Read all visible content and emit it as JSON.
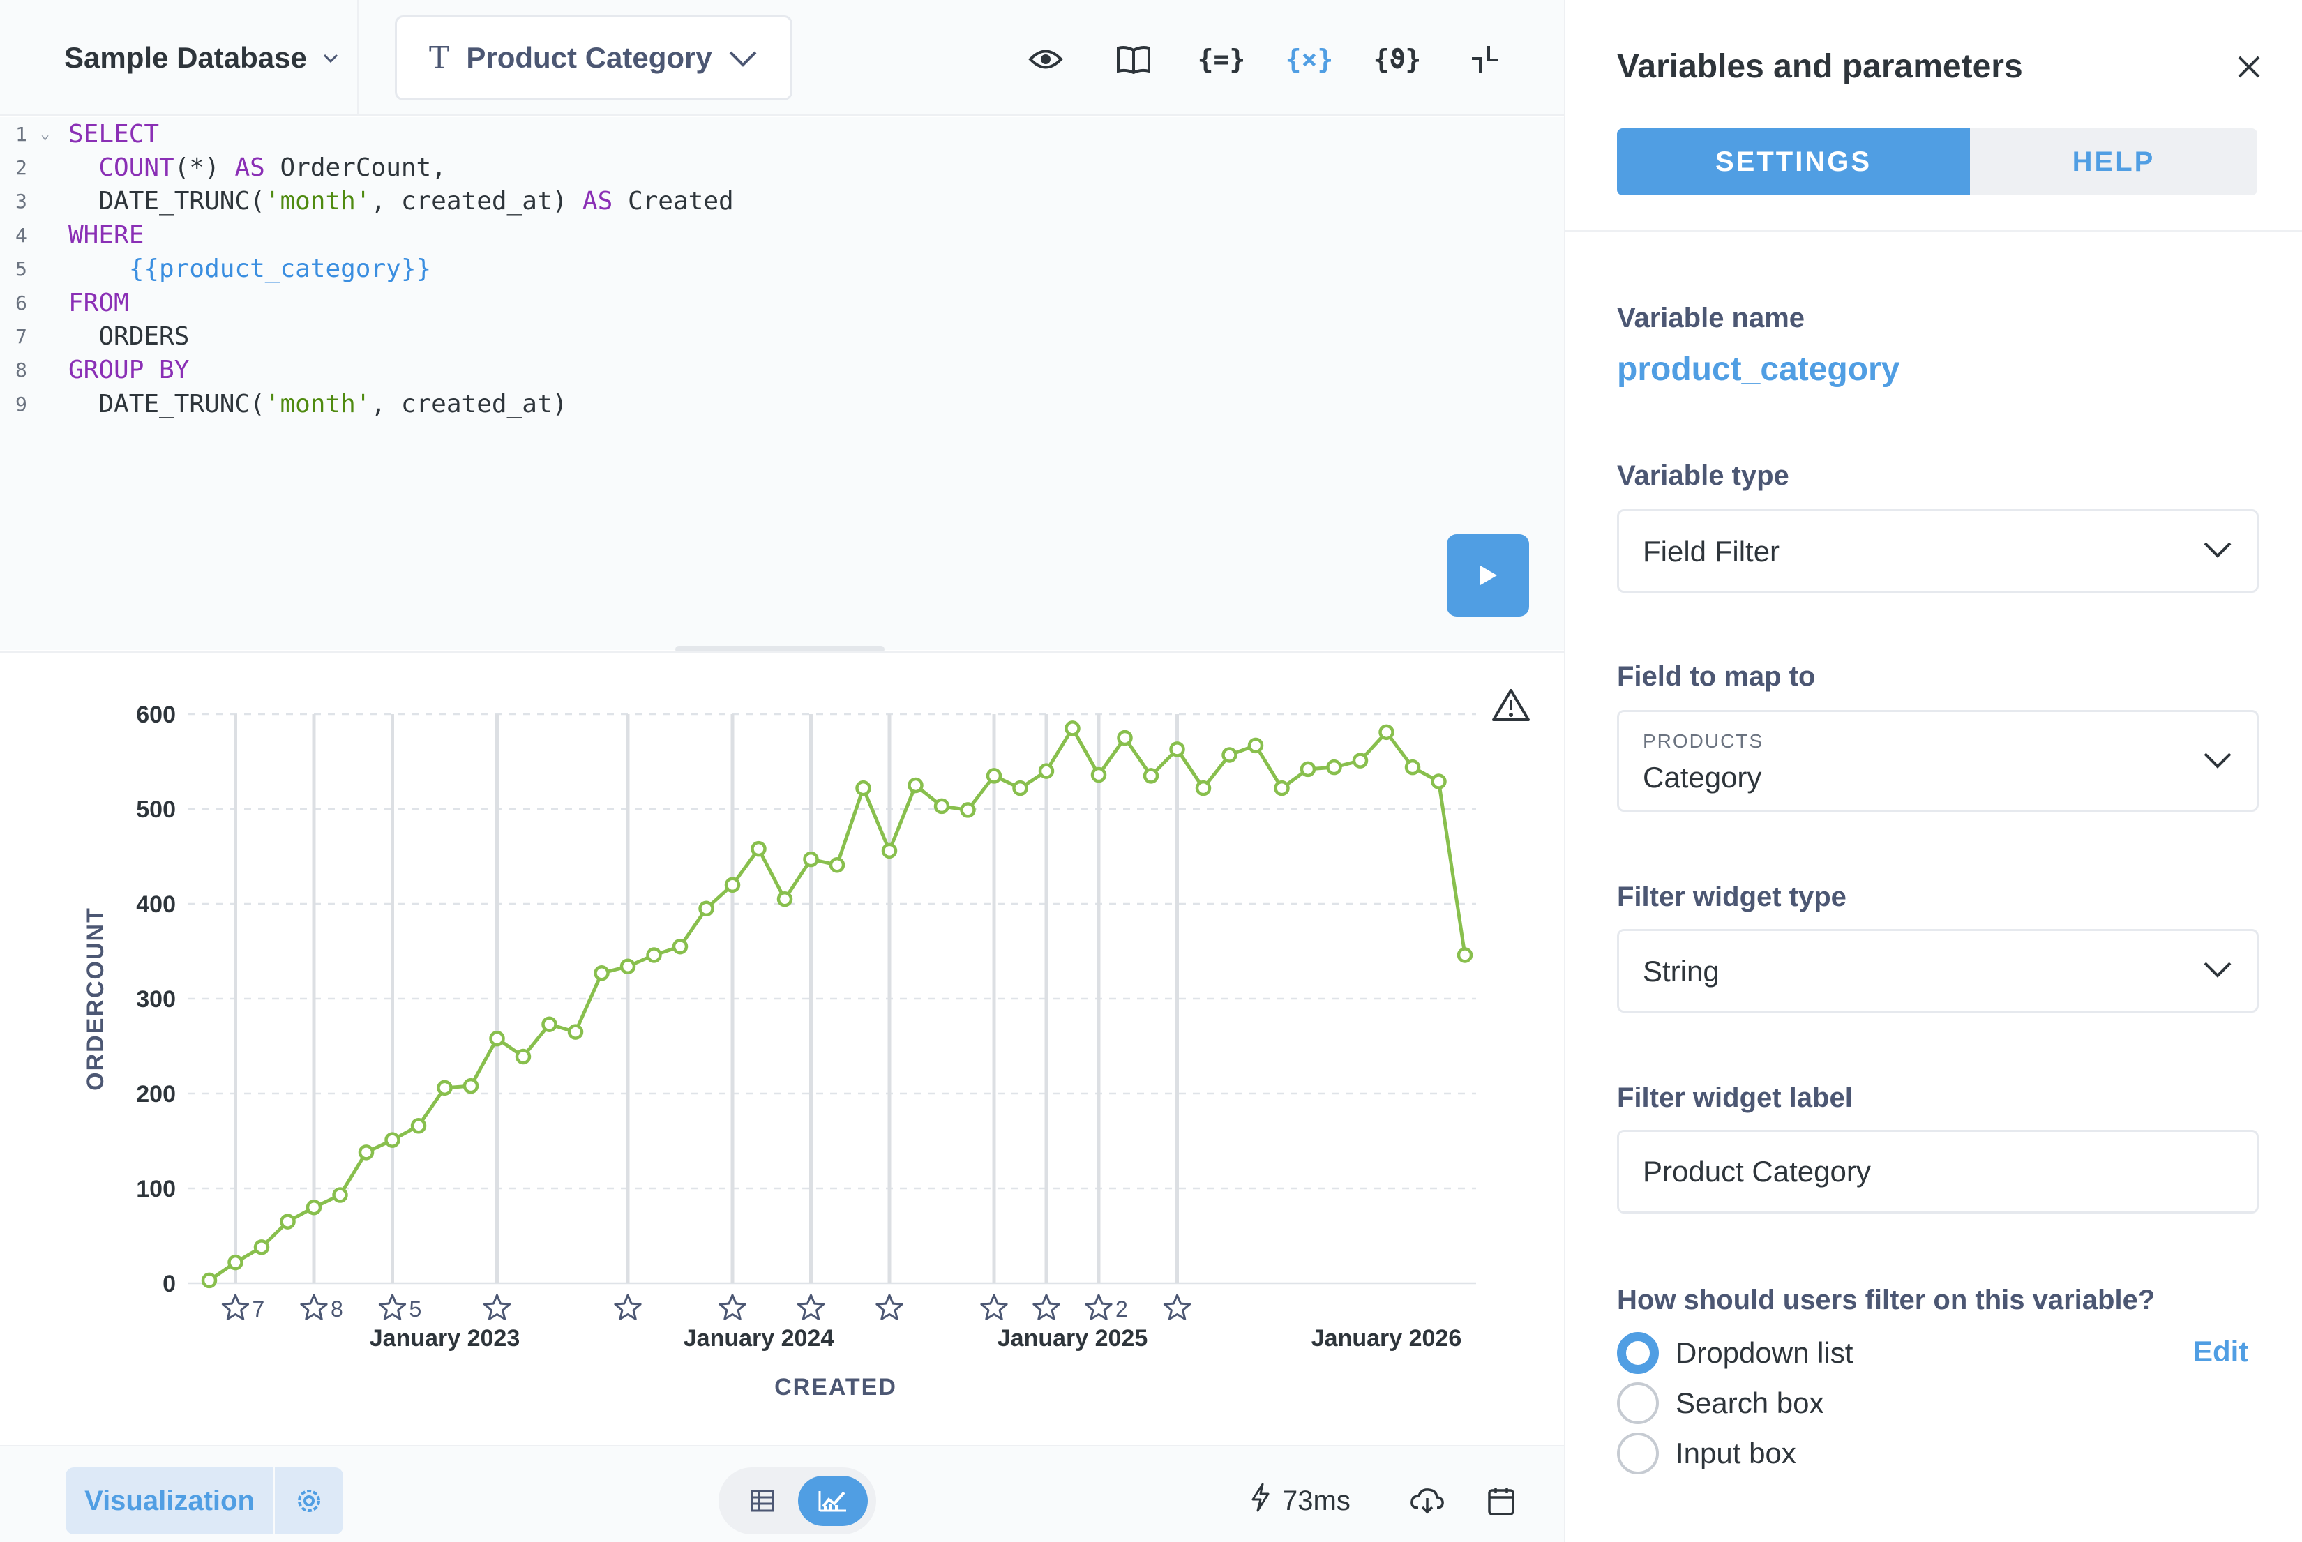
{
  "topbar": {
    "database": "Sample Database",
    "variable_pill": "Product Category",
    "tools": [
      "preview-icon",
      "data-reference-icon",
      "snippets-icon",
      "variables-icon",
      "parameters-icon",
      "collapse-icon"
    ]
  },
  "editor": {
    "lines": [
      {
        "n": "1",
        "parts": [
          {
            "t": "SELECT",
            "c": "kw"
          }
        ]
      },
      {
        "n": "2",
        "parts": [
          {
            "t": "  ",
            "c": ""
          },
          {
            "t": "COUNT",
            "c": "kw"
          },
          {
            "t": "(*) ",
            "c": ""
          },
          {
            "t": "AS",
            "c": "kw"
          },
          {
            "t": " OrderCount,",
            "c": ""
          }
        ]
      },
      {
        "n": "3",
        "parts": [
          {
            "t": "  DATE_TRUNC(",
            "c": ""
          },
          {
            "t": "'month'",
            "c": "str"
          },
          {
            "t": ", created_at) ",
            "c": ""
          },
          {
            "t": "AS",
            "c": "kw"
          },
          {
            "t": " Created",
            "c": ""
          }
        ]
      },
      {
        "n": "4",
        "parts": [
          {
            "t": "WHERE",
            "c": "kw"
          }
        ]
      },
      {
        "n": "5",
        "parts": [
          {
            "t": "    ",
            "c": ""
          },
          {
            "t": "{{product_category}}",
            "c": "var"
          }
        ]
      },
      {
        "n": "6",
        "parts": [
          {
            "t": "FROM",
            "c": "kw"
          }
        ]
      },
      {
        "n": "7",
        "parts": [
          {
            "t": "  ORDERS",
            "c": ""
          }
        ]
      },
      {
        "n": "8",
        "parts": [
          {
            "t": "GROUP BY",
            "c": "kw"
          }
        ]
      },
      {
        "n": "9",
        "parts": [
          {
            "t": "  DATE_TRUNC(",
            "c": ""
          },
          {
            "t": "'month'",
            "c": "str"
          },
          {
            "t": ", created_at)",
            "c": ""
          }
        ]
      }
    ]
  },
  "chart_data": {
    "type": "line",
    "xlabel": "CREATED",
    "ylabel": "ORDERCOUNT",
    "ylim": [
      0,
      600
    ],
    "yticks": [
      "0",
      "100",
      "200",
      "300",
      "400",
      "500",
      "600"
    ],
    "xticks": [
      {
        "label": "January 2023",
        "index": 9
      },
      {
        "label": "January 2024",
        "index": 21
      },
      {
        "label": "January 2025",
        "index": 33
      },
      {
        "label": "January 2026",
        "index": 45
      }
    ],
    "series_color": "#88bf4d",
    "grid": "horizontal dashed",
    "values": [
      3,
      22,
      38,
      65,
      80,
      93,
      138,
      151,
      166,
      206,
      208,
      258,
      239,
      273,
      265,
      327,
      334,
      346,
      355,
      395,
      420,
      458,
      405,
      447,
      441,
      522,
      456,
      525,
      503,
      499,
      535,
      522,
      540,
      585,
      536,
      575,
      535,
      563,
      522,
      557,
      567,
      522,
      542,
      544,
      551,
      581,
      544,
      529,
      346
    ],
    "event_markers": [
      {
        "index": 1,
        "count": "7"
      },
      {
        "index": 4,
        "count": "8"
      },
      {
        "index": 7,
        "count": "5"
      },
      {
        "index": 11,
        "count": ""
      },
      {
        "index": 16,
        "count": ""
      },
      {
        "index": 20,
        "count": ""
      },
      {
        "index": 23,
        "count": ""
      },
      {
        "index": 26,
        "count": ""
      },
      {
        "index": 30,
        "count": ""
      },
      {
        "index": 32,
        "count": ""
      },
      {
        "index": 34,
        "count": "2"
      },
      {
        "index": 37,
        "count": ""
      }
    ]
  },
  "footer": {
    "visualization_label": "Visualization",
    "timing": "73ms"
  },
  "panel": {
    "title": "Variables and parameters",
    "tabs": {
      "settings": "SETTINGS",
      "help": "HELP"
    },
    "variable_name_label": "Variable name",
    "variable_name": "product_category",
    "variable_type_label": "Variable type",
    "variable_type": "Field Filter",
    "field_map_label": "Field to map to",
    "field_map_table": "PRODUCTS",
    "field_map_field": "Category",
    "widget_type_label": "Filter widget type",
    "widget_type": "String",
    "widget_label_label": "Filter widget label",
    "widget_label": "Product Category",
    "filter_question": "How should users filter on this variable?",
    "filter_options": [
      "Dropdown list",
      "Search box",
      "Input box"
    ],
    "filter_selected": "Dropdown list",
    "edit_link": "Edit"
  },
  "colors": {
    "accent": "#509ee3",
    "line": "#88bf4d",
    "keyword": "#8a2fb5",
    "string": "#4f8a10"
  }
}
